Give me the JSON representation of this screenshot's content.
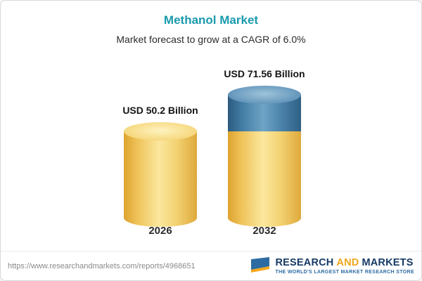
{
  "chart_data": {
    "type": "bar",
    "title": "Methanol Market",
    "subtitle": "Market forecast to grow at a CAGR of 6.0%",
    "categories": [
      "2026",
      "2032"
    ],
    "values": [
      50.2,
      71.56
    ],
    "value_labels": [
      "USD 50.2 Billion",
      "USD 71.56 Billion"
    ],
    "unit": "USD Billion",
    "cagr": "6.0%",
    "legend_position": "none",
    "grid": false,
    "colors": {
      "base_bar": "#F2CE68",
      "growth_segment": "#4C83AB",
      "title": "#1A9AAD"
    }
  },
  "footer": {
    "url": "https://www.researchandmarkets.com/reports/4968651",
    "logo": {
      "part1": "RESEARCH",
      "part2": "AND",
      "part3": "MARKETS",
      "tagline": "THE WORLD'S LARGEST MARKET RESEARCH STORE"
    }
  }
}
